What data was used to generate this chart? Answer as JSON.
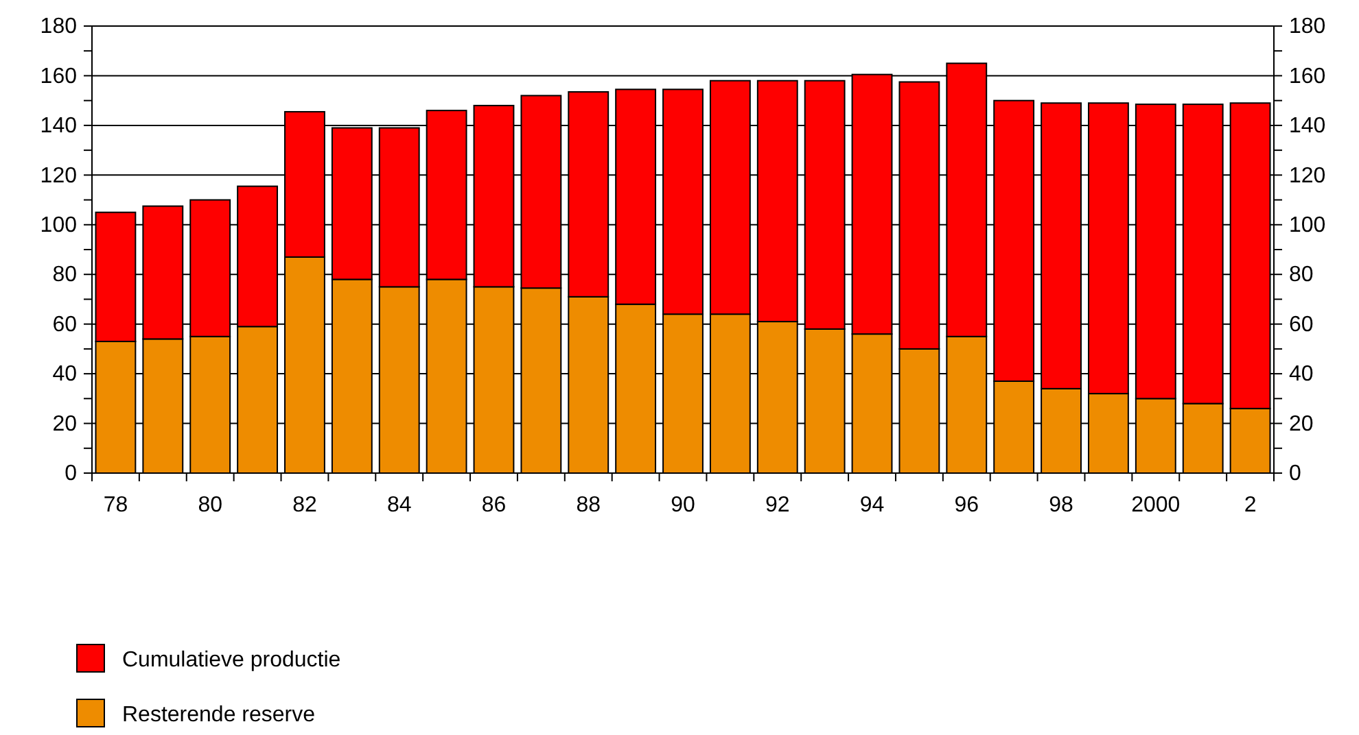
{
  "chart_data": {
    "type": "bar",
    "stacked": true,
    "categories": [
      "78",
      null,
      "80",
      null,
      "82",
      null,
      "84",
      null,
      "86",
      null,
      "88",
      null,
      "90",
      null,
      "92",
      null,
      "94",
      null,
      "96",
      null,
      "98",
      null,
      "2000",
      null,
      "2"
    ],
    "series": [
      {
        "name": "Resterende reserve",
        "color": "#ee8c00",
        "values": [
          53,
          54,
          55,
          59,
          87,
          78,
          75,
          78,
          75,
          74.5,
          71,
          68,
          64,
          64,
          61,
          58,
          56,
          50,
          55,
          37,
          34,
          32,
          30,
          28,
          26
        ]
      },
      {
        "name": "Cumulatieve productie",
        "color": "#fe0000",
        "values": [
          52,
          53.5,
          55,
          56.5,
          58.5,
          61,
          64,
          68,
          73,
          77.5,
          82.5,
          86.5,
          90.5,
          94,
          97,
          100,
          104.5,
          107.5,
          110,
          113,
          115,
          117,
          118.5,
          120.5,
          123
        ]
      }
    ],
    "ylim": [
      0,
      180
    ],
    "yticks": [
      0,
      {
        "value": 10,
        "label": null
      },
      20,
      {
        "value": 30,
        "label": null
      },
      40,
      {
        "value": 50,
        "label": null
      },
      60,
      {
        "value": 70,
        "label": null
      },
      80,
      {
        "value": 90,
        "label": null
      },
      100,
      {
        "value": 110,
        "label": null
      },
      120,
      {
        "value": 130,
        "label": null
      },
      140,
      {
        "value": 150,
        "label": null
      },
      160,
      {
        "value": 170,
        "label": null
      },
      180
    ],
    "y2lim": [
      0,
      180
    ],
    "y2ticks": [
      0,
      {
        "value": 10,
        "label": null
      },
      20,
      {
        "value": 30,
        "label": null
      },
      40,
      {
        "value": 50,
        "label": null
      },
      60,
      {
        "value": 70,
        "label": null
      },
      80,
      {
        "value": 90,
        "label": null
      },
      100,
      {
        "value": 110,
        "label": null
      },
      120,
      {
        "value": 130,
        "label": null
      },
      140,
      {
        "value": 150,
        "label": null
      },
      160,
      {
        "value": 170,
        "label": null
      },
      180
    ],
    "grid": "y",
    "legend": "bottom left"
  }
}
